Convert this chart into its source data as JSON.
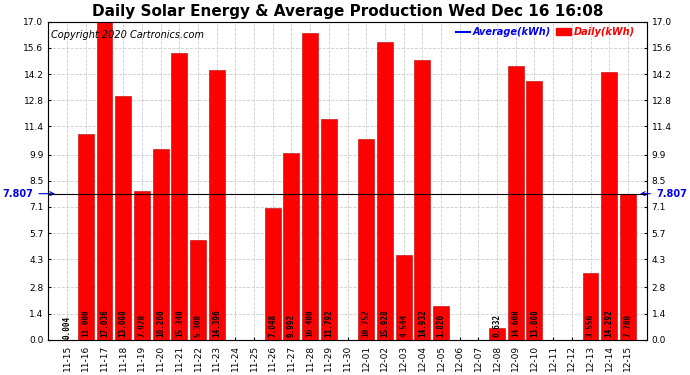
{
  "title": "Daily Solar Energy & Average Production Wed Dec 16 16:08",
  "copyright": "Copyright 2020 Cartronics.com",
  "legend_avg": "Average(kWh)",
  "legend_daily": "Daily(kWh)",
  "average_value": 7.807,
  "categories": [
    "11-15",
    "11-16",
    "11-17",
    "11-18",
    "11-19",
    "11-20",
    "11-21",
    "11-22",
    "11-23",
    "11-24",
    "11-25",
    "11-26",
    "11-27",
    "11-28",
    "11-29",
    "11-30",
    "12-01",
    "12-02",
    "12-03",
    "12-04",
    "12-05",
    "12-06",
    "12-07",
    "12-08",
    "12-09",
    "12-10",
    "12-11",
    "12-12",
    "12-13",
    "12-14",
    "12-15"
  ],
  "values": [
    0.004,
    11.0,
    17.036,
    13.008,
    7.928,
    10.208,
    15.34,
    5.308,
    14.396,
    0.0,
    0.0,
    7.048,
    9.992,
    16.4,
    11.792,
    0.0,
    10.752,
    15.928,
    4.544,
    14.932,
    1.82,
    0.0,
    0.0,
    0.632,
    14.608,
    13.808,
    0.0,
    0.0,
    3.556,
    14.292,
    7.78
  ],
  "bar_color": "#ff0000",
  "bar_edge_color": "#bb0000",
  "avg_line_color": "#000000",
  "avg_label_color": "#0000ee",
  "title_color": "#000000",
  "copyright_color": "#000000",
  "legend_avg_color": "#0000ee",
  "legend_daily_color": "#ff0000",
  "background_color": "#ffffff",
  "grid_color": "#cccccc",
  "ylim": [
    0.0,
    17.0
  ],
  "yticks_left": [
    0.0,
    1.4,
    2.8,
    4.3,
    5.7,
    7.1,
    8.5,
    9.9,
    11.4,
    12.8,
    14.2,
    15.6,
    17.0
  ],
  "yticks_right": [
    0.0,
    1.4,
    2.8,
    4.3,
    5.7,
    7.1,
    8.5,
    9.9,
    11.4,
    12.8,
    14.2,
    15.6,
    17.0
  ],
  "title_fontsize": 11,
  "tick_fontsize": 6.5,
  "value_fontsize": 5.5,
  "avg_fontsize": 7,
  "copyright_fontsize": 7
}
